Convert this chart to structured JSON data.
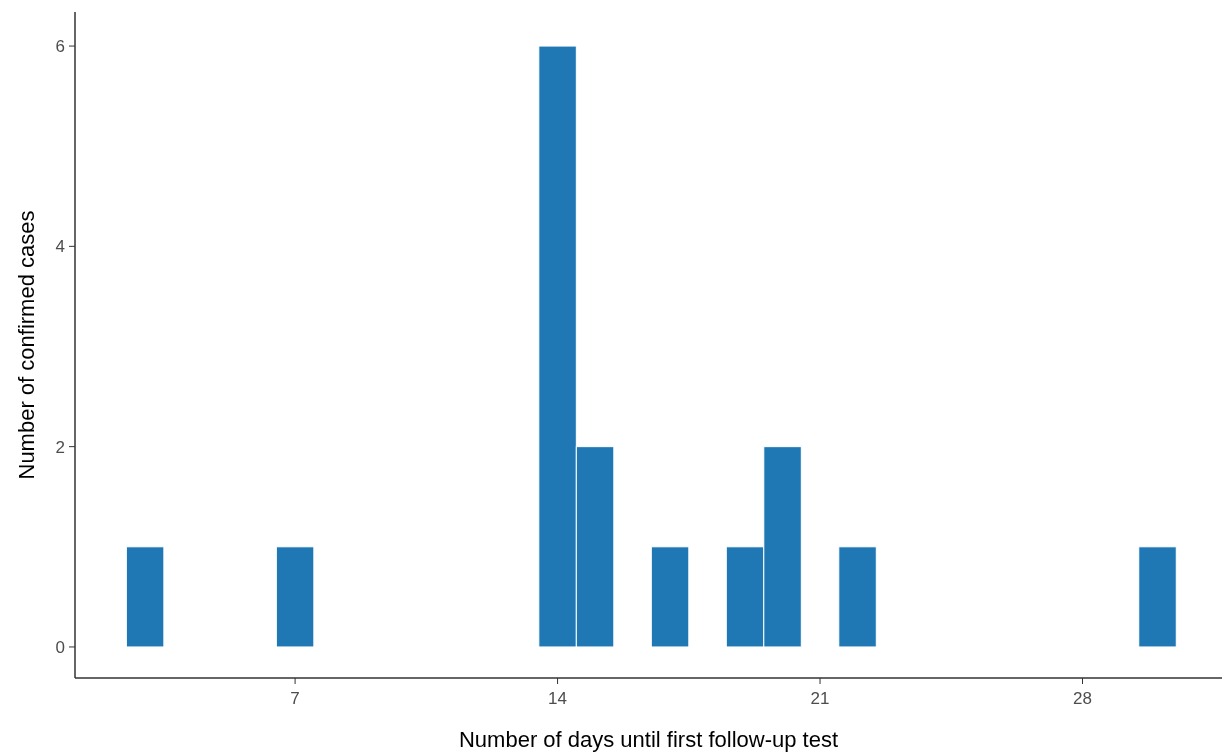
{
  "chart_data": {
    "type": "histogram",
    "xlabel": "Number of days until first follow-up test",
    "ylabel": "Number of confirmed cases",
    "bins": [
      2.5,
      3.5,
      4.5,
      5.5,
      6.5,
      7.5,
      8.5,
      9.5,
      10.5,
      11.5,
      12.5,
      13.5,
      14.5,
      15.5,
      16.5,
      17.5,
      18.5,
      19.5,
      20.5,
      21.5,
      22.5,
      23.5,
      24.5,
      25.5,
      26.5,
      27.5,
      28.5,
      29.5,
      30.5
    ],
    "values": [
      1,
      0,
      0,
      0,
      1,
      0,
      0,
      0,
      0,
      0,
      0,
      6,
      2,
      0,
      1,
      0,
      1,
      2,
      0,
      1,
      0,
      0,
      0,
      0,
      0,
      0,
      0,
      1
    ],
    "color": "#1f78b4",
    "xlim": [
      1.13,
      31.72
    ],
    "xticks": [
      7,
      14,
      21,
      28
    ],
    "ylim": [
      -0.31,
      6.34
    ],
    "yticks": [
      0,
      2,
      4,
      6
    ],
    "grid": false
  }
}
